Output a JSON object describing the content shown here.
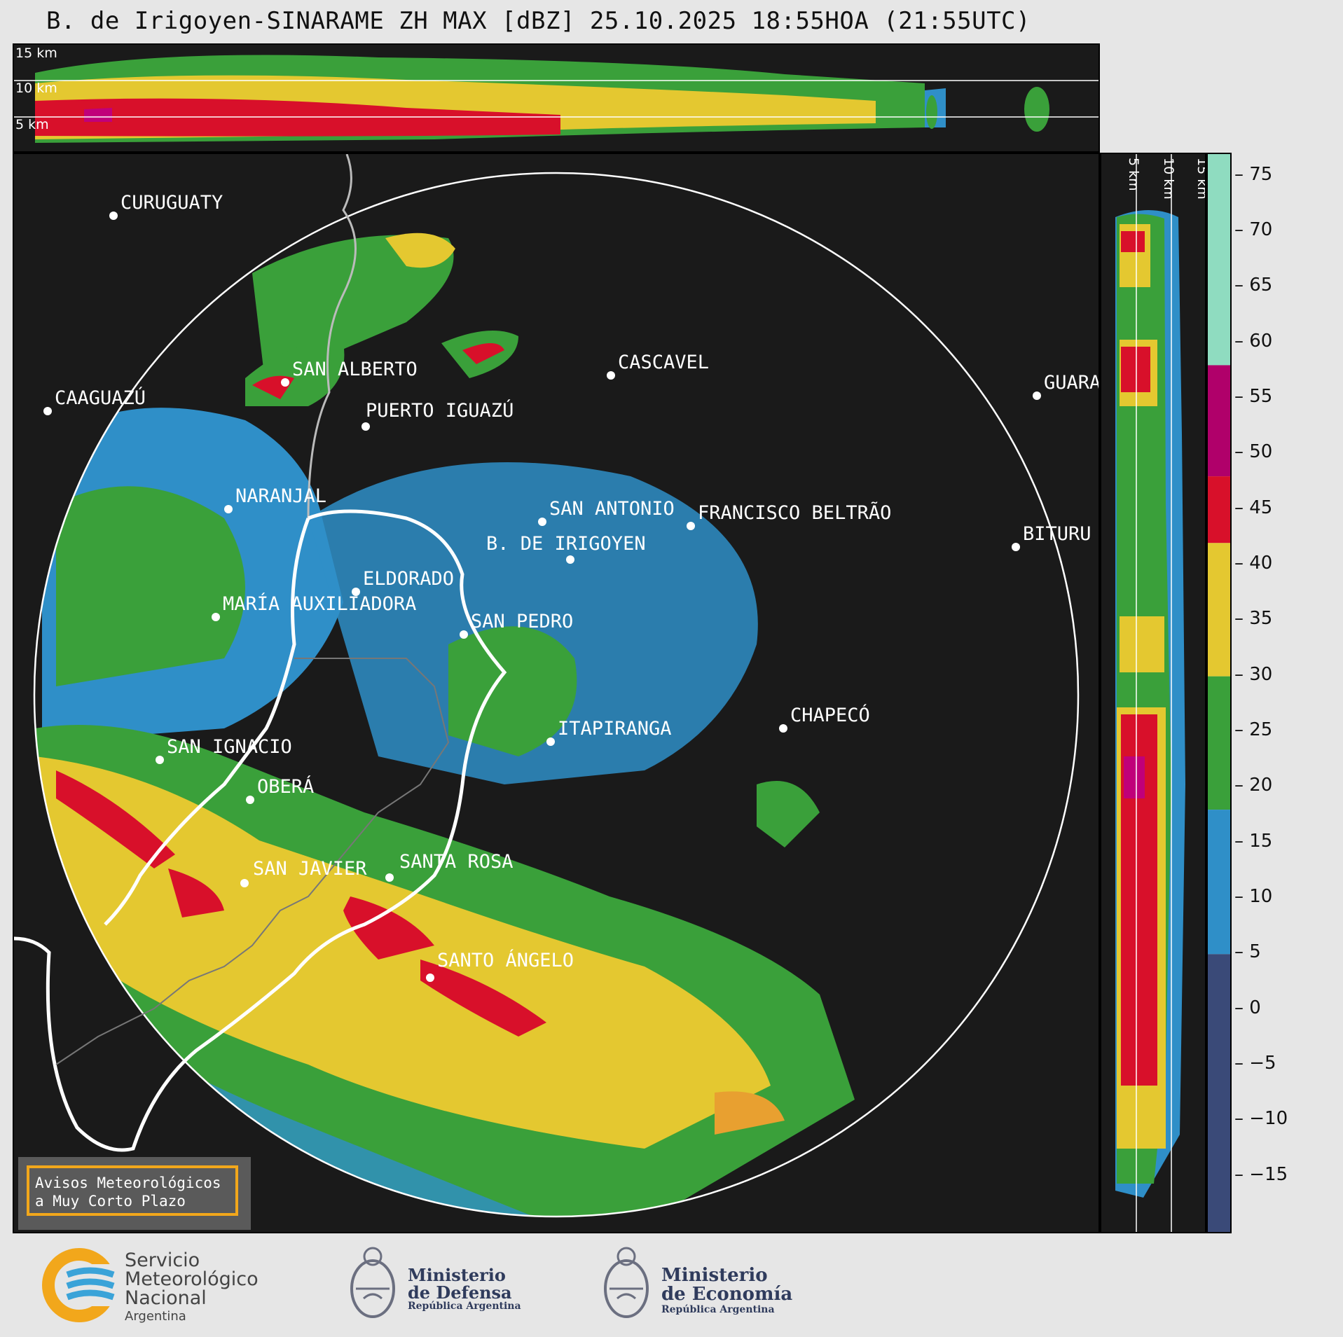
{
  "title": "B. de Irigoyen-SINARAME ZH MAX [dBZ] 25.10.2025 18:55HOA (21:55UTC)",
  "top_section": {
    "height_labels": [
      "15 km",
      "10 km",
      "5 km"
    ]
  },
  "side_section": {
    "height_labels": [
      "5 km",
      "10 km",
      "15 km"
    ]
  },
  "colorbar": {
    "ticks": [
      "75",
      "70",
      "65",
      "60",
      "55",
      "50",
      "45",
      "40",
      "35",
      "30",
      "25",
      "20",
      "15",
      "10",
      "5",
      "0",
      "−5",
      "−10",
      "−15"
    ],
    "bands": [
      {
        "from": 58,
        "to": 77,
        "color": "#8fdcc0"
      },
      {
        "from": 48,
        "to": 58,
        "color": "#b0006a"
      },
      {
        "from": 42,
        "to": 48,
        "color": "#d8102a"
      },
      {
        "from": 30,
        "to": 42,
        "color": "#e4c830"
      },
      {
        "from": 18,
        "to": 30,
        "color": "#3aa03a"
      },
      {
        "from": 5,
        "to": 18,
        "color": "#2f8fc8"
      },
      {
        "from": -20,
        "to": 5,
        "color": "#3a4a78"
      }
    ]
  },
  "cities": [
    {
      "name": "CURUGUATY"
    },
    {
      "name": "SAN ALBERTO"
    },
    {
      "name": "CASCAVEL"
    },
    {
      "name": "CAAGUAZÚ"
    },
    {
      "name": "GUARA"
    },
    {
      "name": "PUERTO IGUAZÚ"
    },
    {
      "name": "NARANJAL"
    },
    {
      "name": "SAN ANTONIO"
    },
    {
      "name": "FRANCISCO BELTRÃO"
    },
    {
      "name": "BITURU"
    },
    {
      "name": "B. DE IRIGOYEN"
    },
    {
      "name": "ELDORADO"
    },
    {
      "name": "MARÍA AUXILIADORA"
    },
    {
      "name": "SAN PEDRO"
    },
    {
      "name": "CHAPECÓ"
    },
    {
      "name": "ITAPIRANGA"
    },
    {
      "name": "SAN IGNACIO"
    },
    {
      "name": "OBERÁ"
    },
    {
      "name": "SAN JAVIER"
    },
    {
      "name": "SANTA ROSA"
    },
    {
      "name": "SANTO ÁNGELO"
    }
  ],
  "notice": {
    "line1": "Avisos Meteorológicos",
    "line2": "a Muy Corto Plazo"
  },
  "logos": {
    "smn": {
      "line1": "Servicio",
      "line2": "Meteorológico",
      "line3": "Nacional",
      "line4": "Argentina"
    },
    "defensa": {
      "line1": "Ministerio",
      "line2": "de Defensa",
      "line3": "República Argentina"
    },
    "economia": {
      "line1": "Ministerio",
      "line2": "de Economía",
      "line3": "República Argentina"
    }
  }
}
